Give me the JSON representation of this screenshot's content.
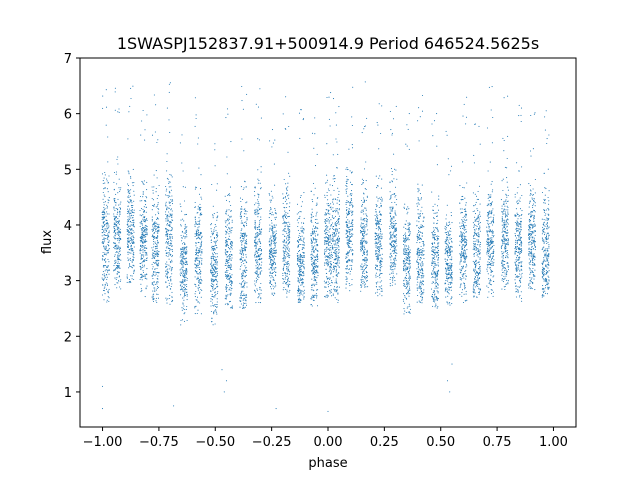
{
  "chart_data": {
    "type": "scatter",
    "title": "1SWASPJ152837.91+500914.9 Period 646524.5625s",
    "xlabel": "phase",
    "ylabel": "flux",
    "xlim": [
      -1.1,
      1.1
    ],
    "ylim": [
      0.37,
      7.0
    ],
    "x_ticks": [
      -1.0,
      -0.75,
      -0.5,
      -0.25,
      0.0,
      0.25,
      0.5,
      0.75,
      1.0
    ],
    "x_tick_labels": [
      "−1.00",
      "−0.75",
      "−0.50",
      "−0.25",
      "0.00",
      "0.25",
      "0.50",
      "0.75",
      "1.00"
    ],
    "y_ticks": [
      1,
      2,
      3,
      4,
      5,
      6,
      7
    ],
    "y_tick_labels": [
      "1",
      "2",
      "3",
      "4",
      "5",
      "6",
      "7"
    ],
    "grid": false,
    "marker_color": "#1f77b4",
    "series": [
      {
        "phase_centers": [
          -0.986,
          -0.935,
          -0.875,
          -0.818,
          -0.765,
          -0.705,
          -0.64,
          -0.575,
          -0.505,
          -0.44,
          -0.375,
          -0.31,
          -0.245,
          -0.185,
          -0.12,
          -0.06,
          0.0,
          0.035,
          0.095,
          0.16,
          0.225,
          0.29,
          0.35,
          0.41,
          0.475,
          0.535,
          0.6,
          0.66,
          0.72,
          0.785,
          0.845,
          0.905,
          0.965
        ],
        "flux_median": [
          3.7,
          3.8,
          3.9,
          3.7,
          3.6,
          3.8,
          3.3,
          3.5,
          3.2,
          3.4,
          3.5,
          3.6,
          3.6,
          3.7,
          3.3,
          3.5,
          3.6,
          3.7,
          3.9,
          3.6,
          3.7,
          3.8,
          3.4,
          3.5,
          3.4,
          3.3,
          3.6,
          3.5,
          3.7,
          3.8,
          3.6,
          3.7,
          3.6
        ],
        "flux_low": [
          2.6,
          2.8,
          2.9,
          2.7,
          2.6,
          2.5,
          2.2,
          2.4,
          2.2,
          2.5,
          2.5,
          2.6,
          2.7,
          2.7,
          2.6,
          2.5,
          2.7,
          2.6,
          2.8,
          2.8,
          2.7,
          2.9,
          2.4,
          2.6,
          2.5,
          2.5,
          2.6,
          2.7,
          2.7,
          2.8,
          2.6,
          2.8,
          2.7
        ],
        "flux_high": [
          5.5,
          5.4,
          5.4,
          5.0,
          5.4,
          5.4,
          4.5,
          5.2,
          4.6,
          4.9,
          5.3,
          5.3,
          4.9,
          5.2,
          4.9,
          4.9,
          5.2,
          5.3,
          5.3,
          5.4,
          5.2,
          5.4,
          4.9,
          5.2,
          4.9,
          4.6,
          5.1,
          5.1,
          5.4,
          5.2,
          5.1,
          5.2,
          5.3
        ],
        "outlier_low": [
          [
            -1.0,
            0.7
          ],
          [
            -1.0,
            1.1
          ],
          [
            -0.46,
            1.0
          ],
          [
            -0.47,
            1.4
          ],
          [
            -0.45,
            1.2
          ],
          [
            0.54,
            1.0
          ],
          [
            0.55,
            1.5
          ],
          [
            0.53,
            1.2
          ],
          [
            -0.23,
            0.7
          ],
          [
            0.0,
            0.65
          ],
          [
            -0.685,
            0.75
          ]
        ]
      }
    ]
  }
}
